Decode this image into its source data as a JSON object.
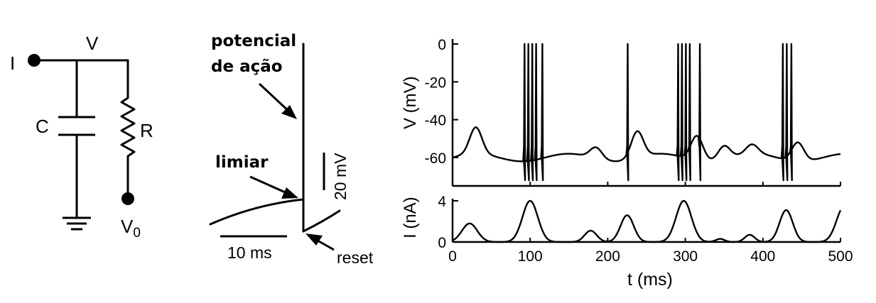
{
  "circuit": {
    "label_I": "I",
    "label_V": "V",
    "label_C": "C",
    "label_R": "R",
    "label_V0_main": "V",
    "label_V0_sub": "0"
  },
  "spike_schematic": {
    "action_potential_line1": "potencial",
    "action_potential_line2": "de ação",
    "threshold": "limiar",
    "reset": "reset",
    "scale_time": "10 ms",
    "scale_voltage": "20 mV"
  },
  "chart_data": [
    {
      "type": "line",
      "ylabel": "V (mV)",
      "yticks": [
        "0",
        "-20",
        "-40",
        "-60"
      ],
      "ylim": [
        -75,
        0
      ],
      "xlim": [
        0,
        500
      ],
      "spike_times_ms": [
        92,
        97,
        102,
        107,
        115,
        225,
        290,
        295,
        300,
        305,
        318,
        425,
        430,
        436
      ],
      "subthreshold_bumps": [
        {
          "t": 30,
          "v": -46
        },
        {
          "t": 185,
          "v": -54
        },
        {
          "t": 238,
          "v": -46
        },
        {
          "t": 315,
          "v": -47
        },
        {
          "t": 350,
          "v": -53
        },
        {
          "t": 386,
          "v": -55
        },
        {
          "t": 445,
          "v": -50
        }
      ],
      "v_rest_mV": -60,
      "v_threshold_mV": -54,
      "v_reset_mV": -72
    },
    {
      "type": "line",
      "ylabel": "I (nA)",
      "xlabel": "t (ms)",
      "yticks": [
        "4",
        "0"
      ],
      "xticks": [
        "0",
        "100",
        "200",
        "300",
        "400",
        "500"
      ],
      "ylim": [
        0,
        4
      ],
      "xlim": [
        0,
        500
      ],
      "peaks": [
        {
          "t": 22,
          "i": 1.8,
          "width_ms": 14
        },
        {
          "t": 100,
          "i": 4.0,
          "width_ms": 14
        },
        {
          "t": 178,
          "i": 1.1,
          "width_ms": 11
        },
        {
          "t": 225,
          "i": 2.6,
          "width_ms": 12
        },
        {
          "t": 298,
          "i": 4.0,
          "width_ms": 14
        },
        {
          "t": 345,
          "i": 0.3,
          "width_ms": 8
        },
        {
          "t": 383,
          "i": 0.7,
          "width_ms": 9
        },
        {
          "t": 430,
          "i": 3.1,
          "width_ms": 12
        },
        {
          "t": 505,
          "i": 3.5,
          "width_ms": 14
        }
      ]
    }
  ]
}
